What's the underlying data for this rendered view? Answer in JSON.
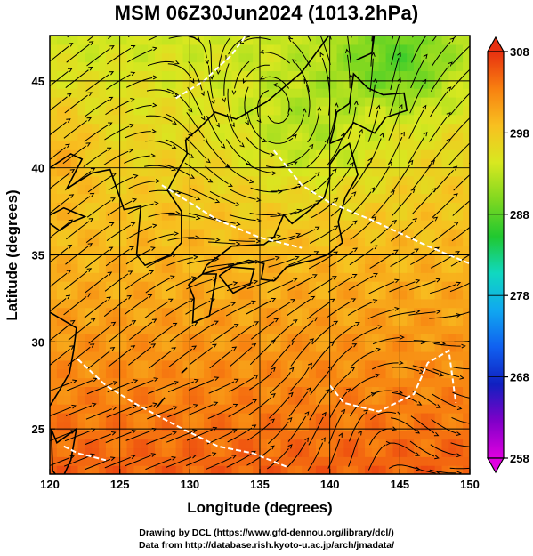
{
  "header": {
    "title": "MSM 06Z30Jun2024 (1013.2hPa)"
  },
  "chart_data": {
    "type": "heatmap",
    "title": "MSM 06Z30Jun2024 (1013.2hPa)",
    "xlabel": "Longitude (degrees)",
    "ylabel": "Latitude  (degrees)",
    "xlim": [
      120,
      150
    ],
    "ylim": [
      22.4,
      47.6
    ],
    "x_ticks": [
      120,
      125,
      130,
      135,
      140,
      145,
      150
    ],
    "y_ticks": [
      25,
      30,
      35,
      40,
      45
    ],
    "grid": true,
    "overlays": [
      "temperature shading (K)",
      "wind streamlines",
      "white contour lines",
      "coastlines"
    ],
    "colorbar": {
      "ticks": [
        258,
        268,
        278,
        288,
        298,
        308
      ],
      "min": 258,
      "max": 308,
      "colors": [
        "#e000e0",
        "#8000c8",
        "#1020c0",
        "#1060f0",
        "#10a8f0",
        "#10d8c0",
        "#20c830",
        "#80d820",
        "#d8e820",
        "#f8c020",
        "#f88010",
        "#e83010"
      ]
    }
  },
  "credits": {
    "line1": "Drawing by DCL (https://www.gfd-dennou.org/library/dcl/)",
    "line2": "Data from http://database.rish.kyoto-u.ac.jp/arch/jmadata/"
  }
}
